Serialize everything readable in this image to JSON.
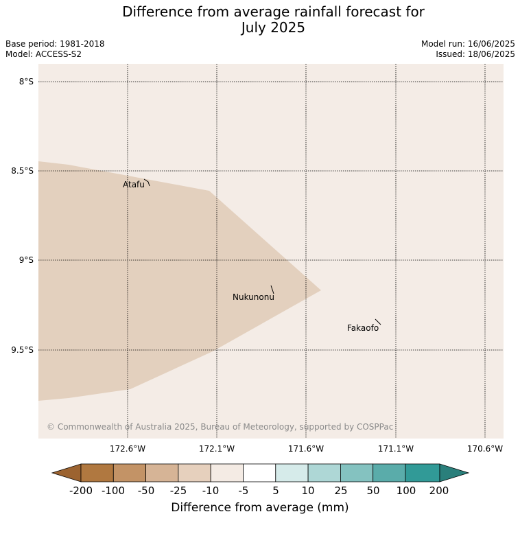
{
  "title_line1": "Difference from average rainfall forecast for",
  "title_line2": "July 2025",
  "base_period": "Base period: 1981-2018",
  "model": "Model: ACCESS-S2",
  "model_run": "Model run: 16/06/2025",
  "issued": "Issued: 18/06/2025",
  "map": {
    "lat_labels": [
      "8°S",
      "8.5°S",
      "9°S",
      "9.5°S"
    ],
    "lon_labels": [
      "172.6°W",
      "172.1°W",
      "171.6°W",
      "171.1°W",
      "170.6°W"
    ],
    "places": [
      "Atafu",
      "Nukunonu",
      "Fakaofo"
    ],
    "copyright": "© Commonwealth of Australia 2025, Bureau of Meteorology, supported by COSPPac",
    "colors": {
      "background": "#f4ece6",
      "anomaly_band": "#e3d0be"
    }
  },
  "legend": {
    "labels": [
      "-200",
      "-100",
      "-50",
      "-25",
      "-10",
      "-5",
      "5",
      "10",
      "25",
      "50",
      "100",
      "200"
    ],
    "colors": [
      "#9c6330",
      "#b07840",
      "#c39366",
      "#d6b496",
      "#e6d0bd",
      "#f4ebe4",
      "#ffffff",
      "#d6ebea",
      "#aed7d6",
      "#84c2c0",
      "#5aacaa",
      "#319a97",
      "#2a7f7b"
    ],
    "title": "Difference from average (mm)"
  }
}
